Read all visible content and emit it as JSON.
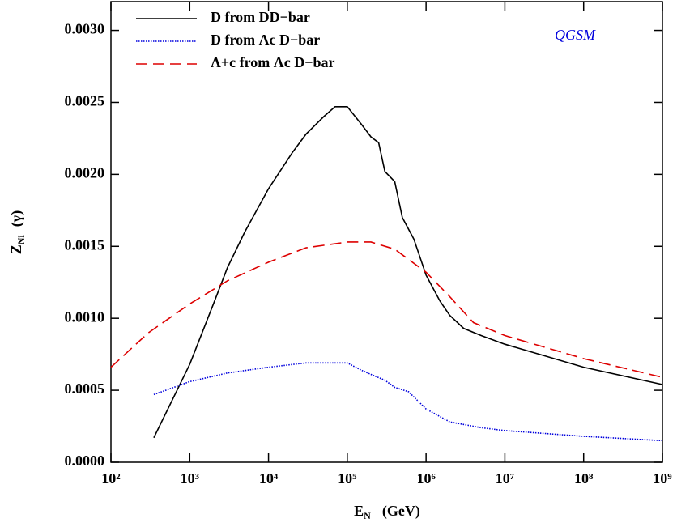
{
  "chart_data": {
    "type": "line",
    "xlabel": [
      "E",
      "N",
      "(GeV)"
    ],
    "ylabel": [
      "Z",
      "Ni",
      "(γ)"
    ],
    "annotation": "QGSM",
    "xscale": "log",
    "xlim": [
      100,
      1000000000
    ],
    "xticks": [
      {
        "value": 100,
        "label": "10²"
      },
      {
        "value": 1000,
        "label": "10³"
      },
      {
        "value": 10000,
        "label": "10⁴"
      },
      {
        "value": 100000,
        "label": "10⁵"
      },
      {
        "value": 1000000,
        "label": "10⁶"
      },
      {
        "value": 10000000,
        "label": "10⁷"
      },
      {
        "value": 100000000,
        "label": "10⁸"
      },
      {
        "value": 1000000000,
        "label": "10⁹"
      }
    ],
    "ylim": [
      0,
      0.0032
    ],
    "yticks": [
      {
        "value": 0,
        "label": "0.0000"
      },
      {
        "value": 0.0005,
        "label": "0.0005"
      },
      {
        "value": 0.001,
        "label": "0.0010"
      },
      {
        "value": 0.0015,
        "label": "0.0015"
      },
      {
        "value": 0.002,
        "label": "0.0020"
      },
      {
        "value": 0.0025,
        "label": "0.0025"
      },
      {
        "value": 0.003,
        "label": "0.0030"
      }
    ],
    "legend": "upper left",
    "series": [
      {
        "name": "D   from  DD−bar",
        "color": "#000000",
        "dash": "solid",
        "x": [
          350,
          1000,
          2000,
          3000,
          5000,
          10000,
          20000,
          30000,
          50000,
          70000,
          100000,
          150000,
          200000,
          250000,
          300000,
          400000,
          500000,
          700000,
          1000000,
          1500000,
          2000000,
          3000000,
          5000000,
          10000000,
          100000000,
          1000000000
        ],
        "values": [
          0.00017,
          0.00068,
          0.0011,
          0.00135,
          0.0016,
          0.0019,
          0.00215,
          0.00228,
          0.0024,
          0.00247,
          0.00247,
          0.00235,
          0.00226,
          0.00222,
          0.00202,
          0.00195,
          0.0017,
          0.00155,
          0.0013,
          0.00112,
          0.00102,
          0.00093,
          0.00088,
          0.00082,
          0.00066,
          0.00054
        ]
      },
      {
        "name": "D   from  Λc D−bar",
        "color": "#0000dd",
        "dash": "dotted",
        "x": [
          350,
          1000,
          3000,
          10000,
          30000,
          100000,
          150000,
          200000,
          300000,
          400000,
          600000,
          1000000,
          2000000,
          5000000,
          10000000,
          100000000,
          1000000000
        ],
        "values": [
          0.00047,
          0.00056,
          0.00062,
          0.00066,
          0.00069,
          0.00069,
          0.00064,
          0.00061,
          0.00057,
          0.00052,
          0.00049,
          0.00037,
          0.00028,
          0.00024,
          0.00022,
          0.00018,
          0.00015
        ]
      },
      {
        "name": "Λ+c from  Λc D−bar",
        "color": "#dd0000",
        "dash": "dashed",
        "x": [
          100,
          300,
          1000,
          3000,
          10000,
          30000,
          100000,
          200000,
          400000,
          1000000,
          2000000,
          4000000,
          10000000,
          100000000,
          1000000000
        ],
        "values": [
          0.00066,
          0.0009,
          0.0011,
          0.00126,
          0.00139,
          0.00149,
          0.00153,
          0.00153,
          0.00148,
          0.00132,
          0.00115,
          0.00097,
          0.00088,
          0.00072,
          0.00059
        ]
      }
    ]
  }
}
